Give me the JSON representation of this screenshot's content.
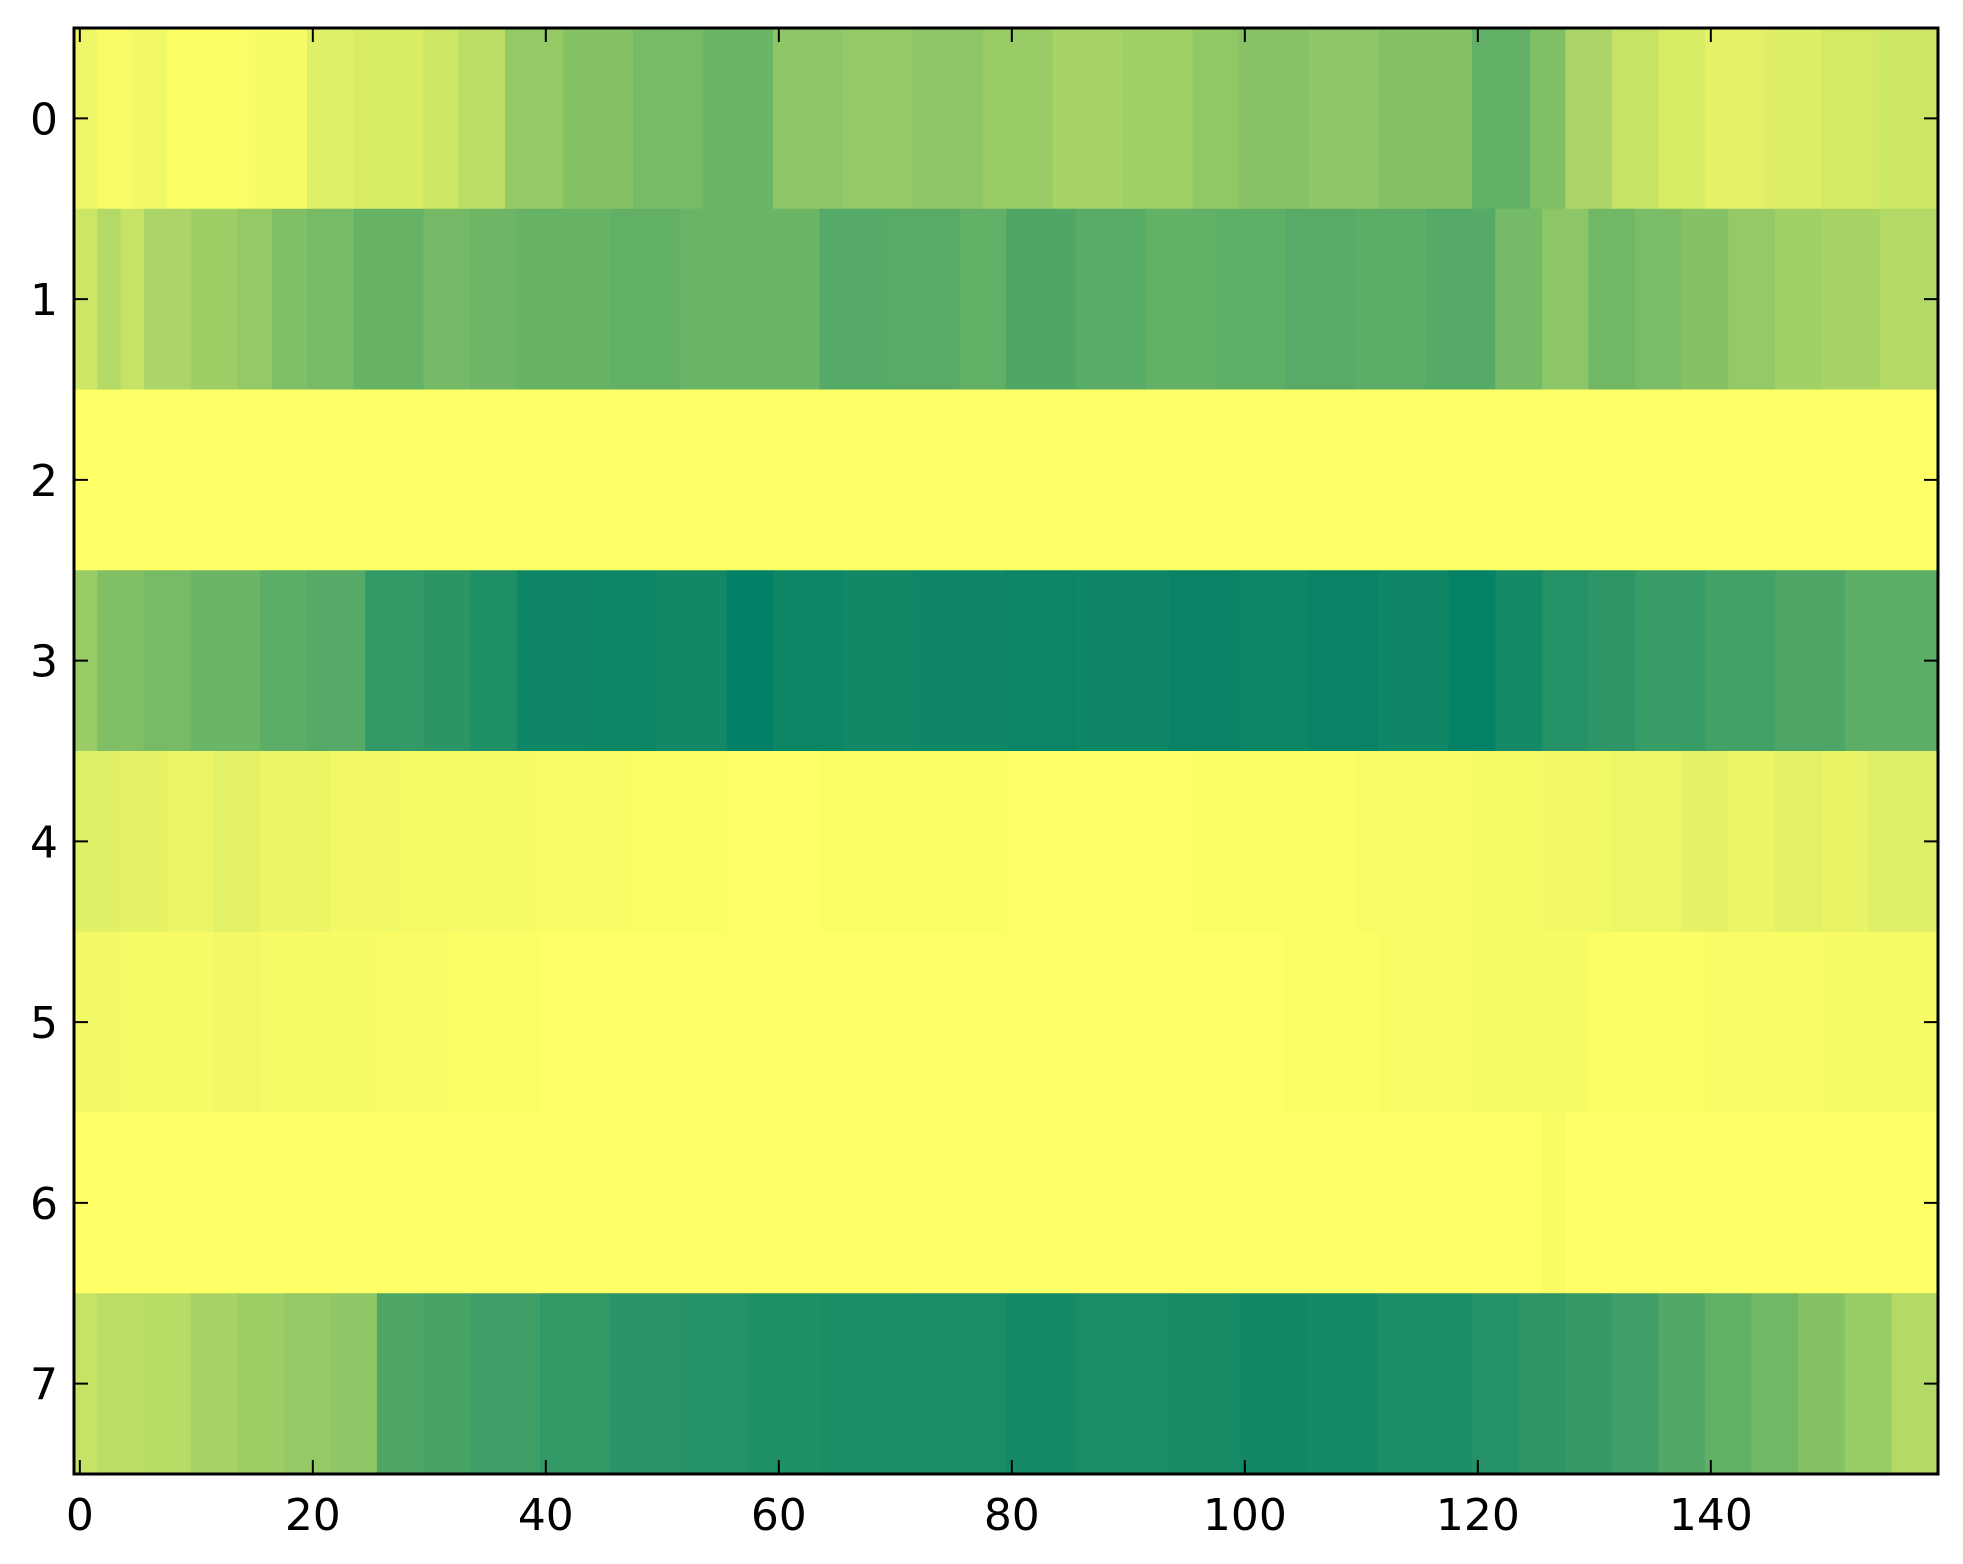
{
  "chart_data": {
    "type": "heatmap",
    "colormap": "summer",
    "x_range": [
      -0.5,
      159.5
    ],
    "y_range": [
      -0.5,
      7.5
    ],
    "xticks": [
      0,
      20,
      40,
      60,
      80,
      100,
      120,
      140
    ],
    "yticks": [
      0,
      1,
      2,
      3,
      4,
      5,
      6,
      7
    ],
    "xtick_labels": [
      "0",
      "20",
      "40",
      "60",
      "80",
      "100",
      "120",
      "140"
    ],
    "ytick_labels": [
      "0",
      "1",
      "2",
      "3",
      "4",
      "5",
      "6",
      "7"
    ],
    "n_cols": 160,
    "value_range": [
      0,
      1
    ],
    "note_values": "normalized intensity 0 = green, 1 = yellow; piecewise-constant segments [start_col, end_col_exclusive, value]",
    "rows": [
      {
        "row": 0,
        "segments": [
          [
            0,
            2,
            0.93
          ],
          [
            2,
            5,
            0.98
          ],
          [
            5,
            8,
            0.95
          ],
          [
            8,
            15,
            0.99
          ],
          [
            15,
            20,
            0.97
          ],
          [
            20,
            24,
            0.88
          ],
          [
            24,
            30,
            0.85
          ],
          [
            30,
            33,
            0.8
          ],
          [
            33,
            37,
            0.74
          ],
          [
            37,
            42,
            0.58
          ],
          [
            42,
            48,
            0.52
          ],
          [
            48,
            54,
            0.47
          ],
          [
            54,
            60,
            0.42
          ],
          [
            60,
            66,
            0.55
          ],
          [
            66,
            72,
            0.58
          ],
          [
            72,
            78,
            0.55
          ],
          [
            78,
            84,
            0.6
          ],
          [
            84,
            90,
            0.66
          ],
          [
            90,
            96,
            0.63
          ],
          [
            96,
            100,
            0.57
          ],
          [
            100,
            106,
            0.53
          ],
          [
            106,
            112,
            0.56
          ],
          [
            112,
            120,
            0.52
          ],
          [
            120,
            125,
            0.38
          ],
          [
            125,
            128,
            0.5
          ],
          [
            128,
            132,
            0.67
          ],
          [
            132,
            136,
            0.78
          ],
          [
            136,
            140,
            0.85
          ],
          [
            140,
            145,
            0.9
          ],
          [
            145,
            150,
            0.87
          ],
          [
            150,
            155,
            0.83
          ],
          [
            155,
            160,
            0.8
          ]
        ]
      },
      {
        "row": 1,
        "segments": [
          [
            0,
            2,
            0.8
          ],
          [
            2,
            4,
            0.7
          ],
          [
            4,
            6,
            0.78
          ],
          [
            6,
            10,
            0.67
          ],
          [
            10,
            14,
            0.62
          ],
          [
            14,
            17,
            0.58
          ],
          [
            17,
            20,
            0.5
          ],
          [
            20,
            24,
            0.47
          ],
          [
            24,
            30,
            0.4
          ],
          [
            30,
            34,
            0.45
          ],
          [
            34,
            38,
            0.43
          ],
          [
            38,
            46,
            0.4
          ],
          [
            46,
            52,
            0.38
          ],
          [
            52,
            58,
            0.41
          ],
          [
            58,
            64,
            0.42
          ],
          [
            64,
            70,
            0.33
          ],
          [
            70,
            76,
            0.34
          ],
          [
            76,
            80,
            0.38
          ],
          [
            80,
            86,
            0.31
          ],
          [
            86,
            92,
            0.35
          ],
          [
            92,
            98,
            0.39
          ],
          [
            98,
            104,
            0.37
          ],
          [
            104,
            110,
            0.34
          ],
          [
            110,
            116,
            0.36
          ],
          [
            116,
            122,
            0.33
          ],
          [
            122,
            126,
            0.46
          ],
          [
            126,
            130,
            0.55
          ],
          [
            130,
            134,
            0.44
          ],
          [
            134,
            138,
            0.48
          ],
          [
            138,
            142,
            0.52
          ],
          [
            142,
            146,
            0.58
          ],
          [
            146,
            150,
            0.63
          ],
          [
            150,
            155,
            0.66
          ],
          [
            155,
            160,
            0.7
          ]
        ]
      },
      {
        "row": 2,
        "segments": [
          [
            0,
            160,
            1.0
          ]
        ]
      },
      {
        "row": 3,
        "segments": [
          [
            0,
            2,
            0.6
          ],
          [
            2,
            6,
            0.5
          ],
          [
            6,
            10,
            0.47
          ],
          [
            10,
            16,
            0.42
          ],
          [
            16,
            20,
            0.36
          ],
          [
            20,
            25,
            0.33
          ],
          [
            25,
            30,
            0.2
          ],
          [
            30,
            34,
            0.17
          ],
          [
            34,
            38,
            0.12
          ],
          [
            38,
            44,
            0.06
          ],
          [
            44,
            50,
            0.05
          ],
          [
            50,
            56,
            0.07
          ],
          [
            56,
            60,
            0.01
          ],
          [
            60,
            66,
            0.05
          ],
          [
            66,
            72,
            0.07
          ],
          [
            72,
            80,
            0.06
          ],
          [
            80,
            86,
            0.04
          ],
          [
            86,
            94,
            0.06
          ],
          [
            94,
            100,
            0.03
          ],
          [
            100,
            106,
            0.05
          ],
          [
            106,
            112,
            0.03
          ],
          [
            112,
            118,
            0.06
          ],
          [
            118,
            122,
            0.02
          ],
          [
            122,
            126,
            0.08
          ],
          [
            126,
            130,
            0.14
          ],
          [
            130,
            134,
            0.18
          ],
          [
            134,
            140,
            0.22
          ],
          [
            140,
            146,
            0.26
          ],
          [
            146,
            152,
            0.3
          ],
          [
            152,
            160,
            0.36
          ]
        ]
      },
      {
        "row": 4,
        "segments": [
          [
            0,
            4,
            0.88
          ],
          [
            4,
            8,
            0.9
          ],
          [
            8,
            12,
            0.92
          ],
          [
            12,
            16,
            0.89
          ],
          [
            16,
            22,
            0.92
          ],
          [
            22,
            28,
            0.95
          ],
          [
            28,
            34,
            0.96
          ],
          [
            34,
            40,
            0.97
          ],
          [
            40,
            48,
            0.98
          ],
          [
            48,
            56,
            0.99
          ],
          [
            56,
            64,
            1.0
          ],
          [
            64,
            80,
            0.99
          ],
          [
            80,
            96,
            1.0
          ],
          [
            96,
            110,
            0.99
          ],
          [
            110,
            120,
            0.98
          ],
          [
            120,
            126,
            0.96
          ],
          [
            126,
            132,
            0.95
          ],
          [
            132,
            138,
            0.93
          ],
          [
            138,
            142,
            0.9
          ],
          [
            142,
            146,
            0.92
          ],
          [
            146,
            150,
            0.89
          ],
          [
            150,
            154,
            0.91
          ],
          [
            154,
            160,
            0.88
          ]
        ]
      },
      {
        "row": 5,
        "segments": [
          [
            0,
            4,
            0.95
          ],
          [
            4,
            8,
            0.97
          ],
          [
            8,
            12,
            0.96
          ],
          [
            12,
            16,
            0.95
          ],
          [
            16,
            20,
            0.96
          ],
          [
            20,
            26,
            0.97
          ],
          [
            26,
            32,
            0.98
          ],
          [
            32,
            40,
            0.99
          ],
          [
            40,
            104,
            1.0
          ],
          [
            104,
            112,
            0.99
          ],
          [
            112,
            120,
            0.98
          ],
          [
            120,
            130,
            0.97
          ],
          [
            130,
            140,
            0.99
          ],
          [
            140,
            150,
            0.98
          ],
          [
            150,
            160,
            0.97
          ]
        ]
      },
      {
        "row": 6,
        "segments": [
          [
            0,
            126,
            1.0
          ],
          [
            126,
            128,
            0.98
          ],
          [
            128,
            160,
            1.0
          ]
        ]
      },
      {
        "row": 7,
        "segments": [
          [
            0,
            2,
            0.78
          ],
          [
            2,
            6,
            0.74
          ],
          [
            6,
            10,
            0.72
          ],
          [
            10,
            14,
            0.66
          ],
          [
            14,
            18,
            0.62
          ],
          [
            18,
            22,
            0.58
          ],
          [
            22,
            26,
            0.56
          ],
          [
            26,
            30,
            0.3
          ],
          [
            30,
            34,
            0.28
          ],
          [
            34,
            40,
            0.25
          ],
          [
            40,
            46,
            0.2
          ],
          [
            46,
            52,
            0.16
          ],
          [
            52,
            58,
            0.14
          ],
          [
            58,
            64,
            0.12
          ],
          [
            64,
            72,
            0.11
          ],
          [
            72,
            80,
            0.1
          ],
          [
            80,
            86,
            0.08
          ],
          [
            86,
            94,
            0.1
          ],
          [
            94,
            100,
            0.09
          ],
          [
            100,
            106,
            0.07
          ],
          [
            106,
            112,
            0.08
          ],
          [
            112,
            120,
            0.11
          ],
          [
            120,
            124,
            0.14
          ],
          [
            124,
            128,
            0.18
          ],
          [
            128,
            132,
            0.21
          ],
          [
            132,
            136,
            0.25
          ],
          [
            136,
            140,
            0.32
          ],
          [
            140,
            144,
            0.38
          ],
          [
            144,
            148,
            0.44
          ],
          [
            148,
            152,
            0.52
          ],
          [
            152,
            156,
            0.6
          ],
          [
            156,
            160,
            0.7
          ]
        ]
      }
    ]
  }
}
